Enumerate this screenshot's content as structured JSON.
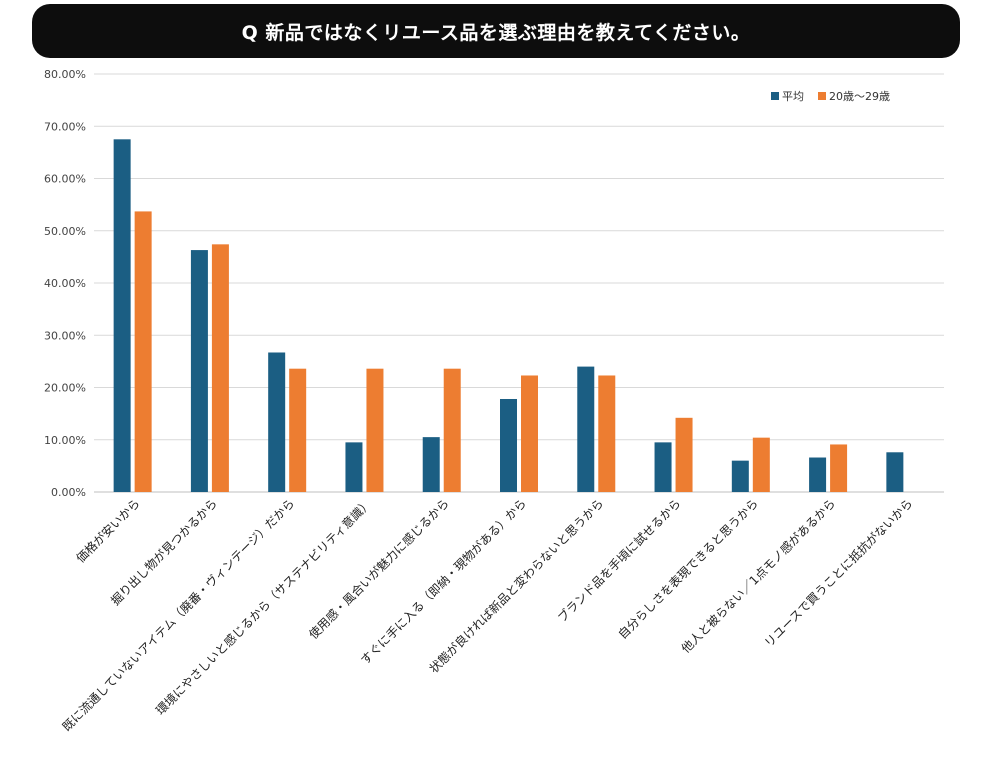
{
  "question": "Q 新品ではなくリユース品を選ぶ理由を教えてください。",
  "chart_data": {
    "type": "bar",
    "title": "",
    "xlabel": "",
    "ylabel": "",
    "ylim": [
      0,
      80
    ],
    "yticks": [
      "0.00%",
      "10.00%",
      "20.00%",
      "30.00%",
      "40.00%",
      "50.00%",
      "60.00%",
      "70.00%",
      "80.00%"
    ],
    "grid": true,
    "legend_position": "top-right",
    "categories": [
      "価格が安いから",
      "掘り出し物が見つかるから",
      "既に流通していないアイテム（廃番・ヴィンテージ）だから",
      "環境にやさしいと感じるから（サステナビリティ意識）",
      "使用感・風合いが魅力に感じるから",
      "すぐに手に入る（即納・現物がある）から",
      "状態が良ければ新品と変わらないと思うから",
      "ブランド品を手頃に試せるから",
      "自分らしさを表現できると思うから",
      "他人と被らない／1点モノ感があるから",
      "リユースで買うことに抵抗がないから"
    ],
    "series": [
      {
        "name": "平均",
        "color": "#1b5e83",
        "values": [
          67.5,
          46.3,
          26.7,
          9.5,
          10.5,
          17.8,
          24.0,
          9.5,
          6.0,
          6.6,
          7.6
        ]
      },
      {
        "name": "20歳～29歳",
        "color": "#ed7d31",
        "values": [
          53.7,
          47.4,
          23.6,
          23.6,
          23.6,
          22.3,
          22.3,
          14.2,
          10.4,
          9.1,
          0
        ]
      }
    ]
  }
}
